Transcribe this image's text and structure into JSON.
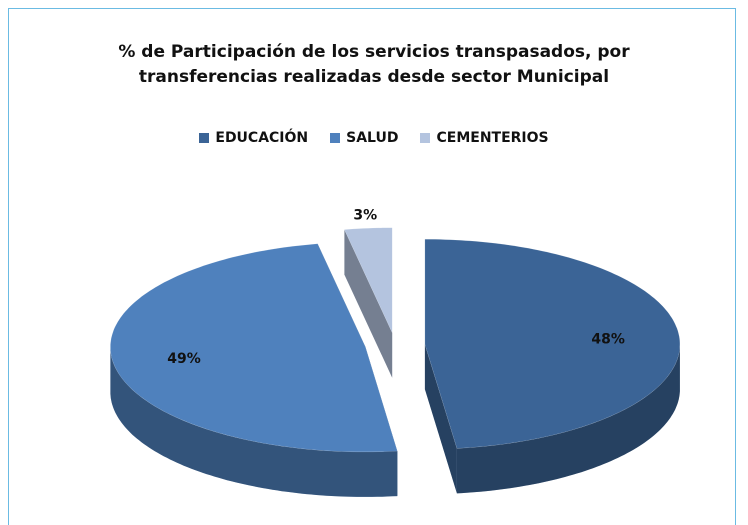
{
  "chart_data": {
    "type": "pie3d",
    "title": "% de Participación de los servicios transpasados, por transferencias realizadas desde sector Municipal",
    "categories": [
      "EDUCACIÓN",
      "SALUD",
      "CEMENTERIOS"
    ],
    "values": [
      48,
      49,
      3
    ],
    "value_labels": [
      "48%",
      "49%",
      "3%"
    ],
    "colors": [
      "#3b6496",
      "#4f81bd",
      "#b4c4df"
    ],
    "legend": "top"
  }
}
